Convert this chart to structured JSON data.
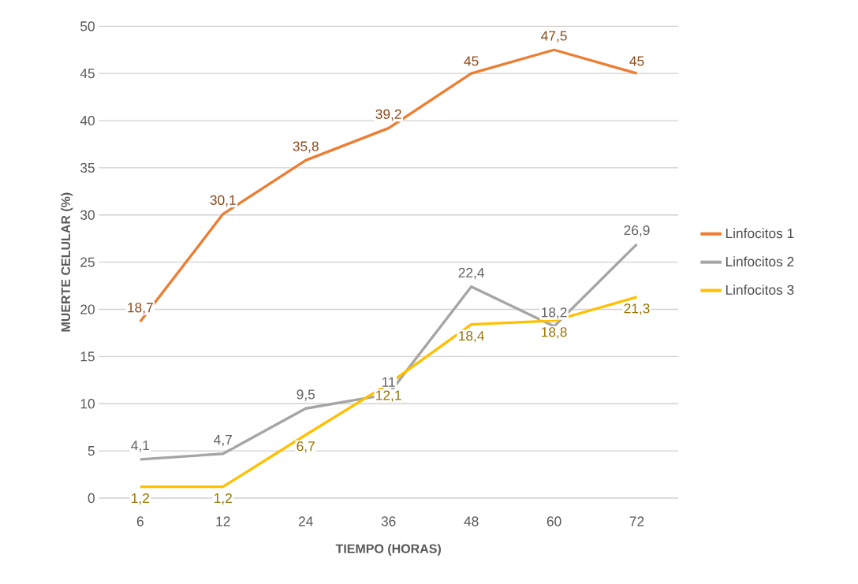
{
  "chart_data": {
    "type": "line",
    "xlabel": "TIEMPO (HORAS)",
    "ylabel": "MUERTE CELULAR (%)",
    "categories": [
      "6",
      "12",
      "24",
      "36",
      "48",
      "60",
      "72"
    ],
    "series": [
      {
        "name": "Linfocitos 1",
        "color": "#ed7d31",
        "values": [
          18.7,
          30.1,
          35.8,
          39.2,
          45,
          47.5,
          45
        ],
        "value_labels": [
          "18,7",
          "30,1",
          "35,8",
          "39,2",
          "45",
          "47,5",
          "45"
        ]
      },
      {
        "name": "Linfocitos 2",
        "color": "#a5a5a5",
        "values": [
          4.1,
          4.7,
          9.5,
          11,
          22.4,
          18.2,
          26.9
        ],
        "value_labels": [
          "4,1",
          "4,7",
          "9,5",
          "11",
          "22,4",
          "18,2",
          "26,9"
        ]
      },
      {
        "name": "Linfocitos 3",
        "color": "#ffc000",
        "values": [
          1.2,
          1.2,
          6.7,
          12.1,
          18.4,
          18.8,
          21.3
        ],
        "value_labels": [
          "1,2",
          "1,2",
          "6,7",
          "12,1",
          "18,4",
          "18,8",
          "21,3"
        ]
      }
    ],
    "ylim": [
      0,
      50
    ],
    "yticks": [
      0,
      5,
      10,
      15,
      20,
      25,
      30,
      35,
      40,
      45,
      50
    ],
    "grid": "y",
    "legend": "right",
    "marker": "none",
    "line_style": "solid"
  }
}
